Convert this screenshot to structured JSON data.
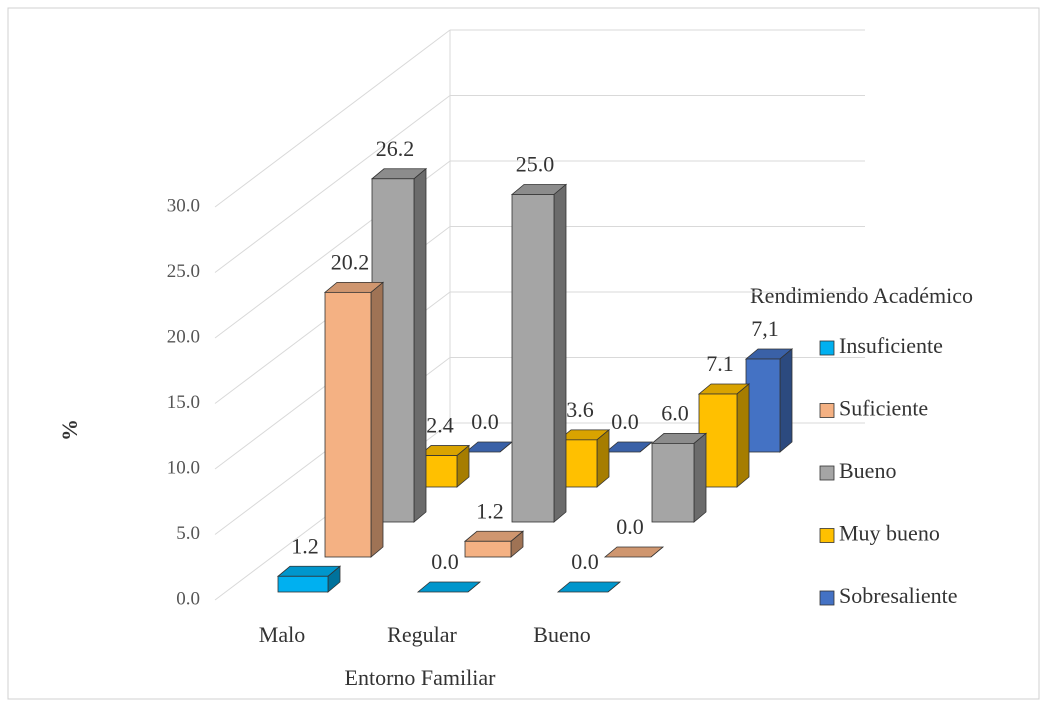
{
  "chart_data": {
    "type": "bar3d",
    "x_label": "Entorno Familiar",
    "y_label": "%",
    "legend_title": "Rendimiendo Académico",
    "legend": "right",
    "grid": true,
    "categories": [
      "Malo",
      "Regular",
      "Bueno"
    ],
    "series": [
      {
        "name": "Insuficiente",
        "color": "#00b0f0",
        "values": [
          1.2,
          0,
          0
        ],
        "value_labels": [
          "1.2",
          "0.0",
          "0.0"
        ]
      },
      {
        "name": "Suficiente",
        "color": "#f4b183",
        "values": [
          20.2,
          1.2,
          0
        ],
        "value_labels": [
          "20.2",
          "1.2",
          "0.0"
        ]
      },
      {
        "name": "Bueno",
        "color": "#a5a5a5",
        "values": [
          26.2,
          25,
          6
        ],
        "value_labels": [
          "26.2",
          "25.0",
          "6.0"
        ]
      },
      {
        "name": "Muy bueno",
        "color": "#ffc000",
        "values": [
          2.4,
          3.6,
          7.1
        ],
        "value_labels": [
          "2.4",
          "3.6",
          "7.1"
        ]
      },
      {
        "name": "Sobresaliente",
        "color": "#4472c4",
        "values": [
          0,
          0,
          7.1
        ],
        "value_labels": [
          "0.0",
          "0.0",
          "7,1"
        ]
      }
    ],
    "ylim": [
      0,
      30
    ],
    "yticks": [
      {
        "value": 0,
        "label": "0.0"
      },
      {
        "value": 5,
        "label": "5.0"
      },
      {
        "value": 10,
        "label": "10.0"
      },
      {
        "value": 15,
        "label": "15.0"
      },
      {
        "value": 20,
        "label": "20.0"
      },
      {
        "value": 25,
        "label": "25.0"
      },
      {
        "value": 30,
        "label": "30.0"
      }
    ]
  }
}
